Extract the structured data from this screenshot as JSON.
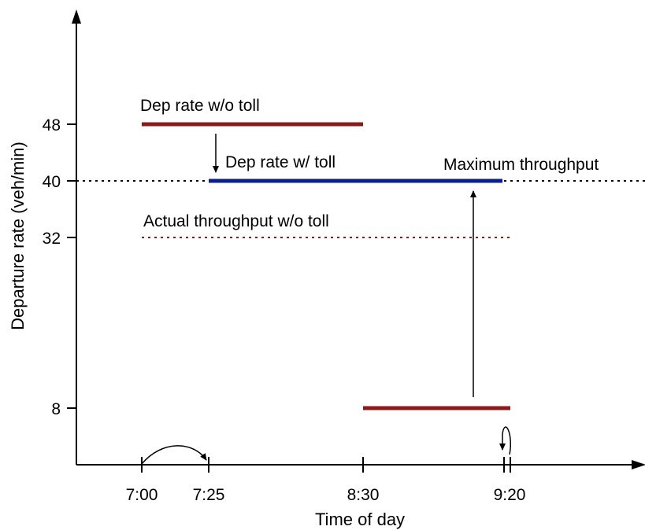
{
  "chart_data": {
    "type": "line",
    "title": "",
    "xlabel": "Time of day",
    "ylabel": "Departure rate (veh/min)",
    "x_ticks": [
      "7:00",
      "7:25",
      "8:30",
      "9:20"
    ],
    "y_ticks": [
      8,
      32,
      40,
      48
    ],
    "series": [
      {
        "name": "Dep rate w/o toll",
        "color": "#8b1a1a",
        "style": "solid",
        "segments": [
          {
            "x_start": "7:00",
            "x_end": "8:30",
            "y": 48
          },
          {
            "x_start": "8:30",
            "x_end": "9:20",
            "y": 8
          }
        ]
      },
      {
        "name": "Dep rate w/ toll",
        "color": "#0a1f8f",
        "style": "solid",
        "segments": [
          {
            "x_start": "7:25",
            "x_end": "9:20",
            "y": 40
          }
        ]
      },
      {
        "name": "Actual throughput w/o toll",
        "color": "#8b1a1a",
        "style": "dotted",
        "segments": [
          {
            "x_start": "7:00",
            "x_end": "9:20",
            "y": 32
          }
        ]
      },
      {
        "name": "Maximum throughput",
        "color": "#000000",
        "style": "dotted",
        "segments": [
          {
            "x_start": "",
            "x_end": "",
            "y": 40
          }
        ]
      }
    ]
  }
}
